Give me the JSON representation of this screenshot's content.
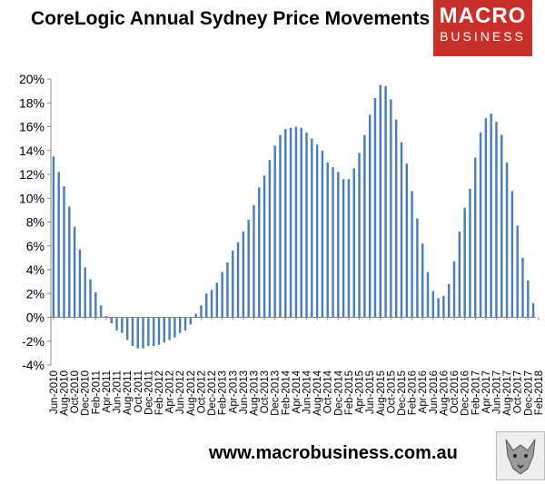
{
  "header": {
    "title": "CoreLogic Annual Sydney Price Movements"
  },
  "logo": {
    "line1": "MACRO",
    "line2": "BUSINESS"
  },
  "footer": {
    "url": "www.macrobusiness.com.au"
  },
  "chart_data": {
    "type": "bar",
    "title": "CoreLogic Annual Sydney Price Movements",
    "xlabel": "",
    "ylabel": "",
    "ylim": [
      -4,
      20
    ],
    "yticks": [
      "-4%",
      "-2%",
      "0%",
      "2%",
      "4%",
      "6%",
      "8%",
      "10%",
      "12%",
      "14%",
      "16%",
      "18%",
      "20%"
    ],
    "grid": false,
    "legend": "none",
    "bar_color": "#4a7ebb",
    "x_tick_labels": [
      "Jun-2010",
      "Aug-2010",
      "Oct-2010",
      "Dec-2010",
      "Feb-2011",
      "Apr-2011",
      "Jun-2011",
      "Aug-2011",
      "Oct-2011",
      "Dec-2011",
      "Feb-2012",
      "Apr-2012",
      "Jun-2012",
      "Aug-2012",
      "Oct-2012",
      "Dec-2012",
      "Feb-2013",
      "Apr-2013",
      "Jun-2013",
      "Aug-2013",
      "Oct-2013",
      "Dec-2013",
      "Feb-2014",
      "Apr-2014",
      "Jun-2014",
      "Aug-2014",
      "Oct-2014",
      "Dec-2014",
      "Feb-2015",
      "Apr-2015",
      "Jun-2015",
      "Aug-2015",
      "Oct-2015",
      "Dec-2015",
      "Feb-2016",
      "Apr-2016",
      "Jun-2016",
      "Aug-2016",
      "Oct-2016",
      "Dec-2016",
      "Feb-2017",
      "Apr-2017",
      "Jun-2017",
      "Aug-2017",
      "Oct-2017",
      "Dec-2017",
      "Feb-2018"
    ],
    "values": [
      13.5,
      12.2,
      11.0,
      9.3,
      7.6,
      5.7,
      4.2,
      3.2,
      2.1,
      1.0,
      0.1,
      -0.5,
      -1.1,
      -1.3,
      -1.9,
      -2.4,
      -2.6,
      -2.6,
      -2.4,
      -2.4,
      -2.3,
      -2.1,
      -1.9,
      -1.7,
      -1.3,
      -1.1,
      -0.6,
      0.3,
      1.0,
      2.0,
      2.3,
      2.9,
      3.8,
      4.6,
      5.6,
      6.3,
      7.2,
      8.2,
      9.4,
      10.9,
      11.9,
      13.2,
      14.4,
      15.3,
      15.8,
      15.9,
      16.0,
      15.9,
      15.5,
      15.0,
      14.5,
      14.0,
      13.0,
      12.6,
      12.2,
      11.6,
      11.6,
      12.5,
      13.8,
      15.3,
      17.0,
      18.4,
      19.5,
      19.4,
      18.3,
      16.6,
      14.7,
      12.9,
      10.6,
      8.3,
      6.2,
      3.8,
      2.2,
      1.6,
      1.8,
      2.8,
      4.7,
      7.2,
      9.2,
      10.8,
      13.4,
      15.5,
      16.7,
      17.1,
      16.4,
      15.3,
      13.0,
      10.6,
      7.7,
      5.0,
      3.1,
      1.2
    ]
  }
}
